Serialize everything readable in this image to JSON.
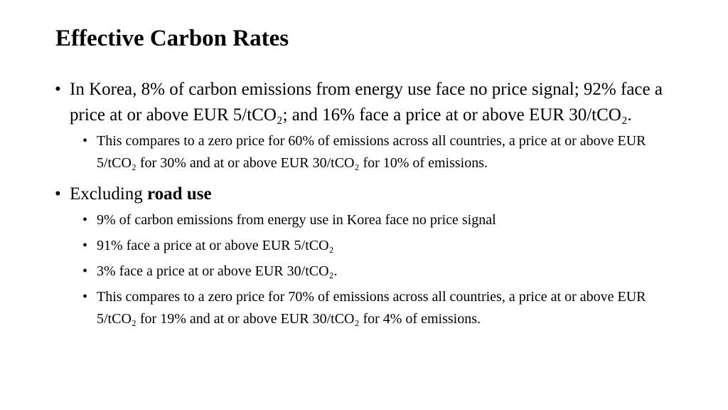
{
  "title": "Effective Carbon Rates",
  "bullet_glyph": "•",
  "bullets": [
    {
      "text": "In Korea, 8% of carbon emissions from energy use face no price signal; 92% face a price at or above EUR 5/tCO₂; and 16% face a price at or above EUR 30/tCO₂.",
      "sub": [
        "This compares to a zero price for 60% of emissions across all countries, a price at or above EUR 5/tCO₂ for 30% and at or above EUR 30/tCO₂ for 10% of emissions."
      ]
    },
    {
      "prefix": "Excluding ",
      "bold": "road use",
      "sub": [
        "9% of carbon emissions from energy use in Korea face no price signal",
        "91% face a price at or above EUR 5/tCO₂",
        "3% face a price at or above EUR 30/tCO₂.",
        "This compares to a zero price for 70% of emissions across all countries, a price at or above EUR 5/tCO₂ for 19% and at or above EUR 30/tCO₂ for 4% of emissions."
      ]
    }
  ]
}
